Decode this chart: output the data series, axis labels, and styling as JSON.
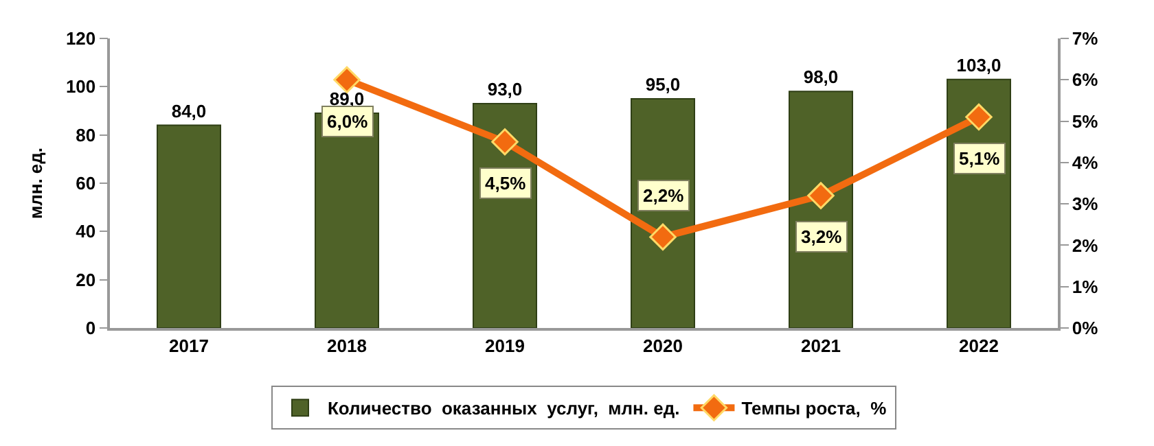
{
  "chart_data": {
    "type": "bar",
    "categories": [
      "2017",
      "2018",
      "2019",
      "2020",
      "2021",
      "2022"
    ],
    "ylabel": "млн. ед.",
    "ylim": [
      0,
      120
    ],
    "yticks": [
      0,
      20,
      40,
      60,
      80,
      100,
      120
    ],
    "y2lim": [
      0,
      7
    ],
    "y2ticks": [
      {
        "value": 0,
        "label": "0%"
      },
      {
        "value": 1,
        "label": "1%"
      },
      {
        "value": 2,
        "label": "2%"
      },
      {
        "value": 3,
        "label": "3%"
      },
      {
        "value": 4,
        "label": "4%"
      },
      {
        "value": 5,
        "label": "5%"
      },
      {
        "value": 6,
        "label": "6%"
      },
      {
        "value": 7,
        "label": "7%"
      }
    ],
    "series": [
      {
        "name": "Количество  оказанных  услуг,  млн. ед.",
        "color": "#4f6228",
        "values": [
          84.0,
          89.0,
          93.0,
          95.0,
          98.0,
          103.0
        ],
        "value_labels": [
          "84,0",
          "89,0",
          "93,0",
          "95,0",
          "98,0",
          "103,0"
        ]
      },
      {
        "name": "Темпы роста,  %",
        "type": "line",
        "axis": "y2",
        "color": "#f26b10",
        "marker": "diamond",
        "values": [
          null,
          6.0,
          4.5,
          2.2,
          3.2,
          5.1
        ],
        "value_labels": [
          null,
          "6,0%",
          "4,5%",
          "2,2%",
          "3,2%",
          "5,1%"
        ]
      }
    ],
    "grid": false,
    "legend": "bottom"
  }
}
